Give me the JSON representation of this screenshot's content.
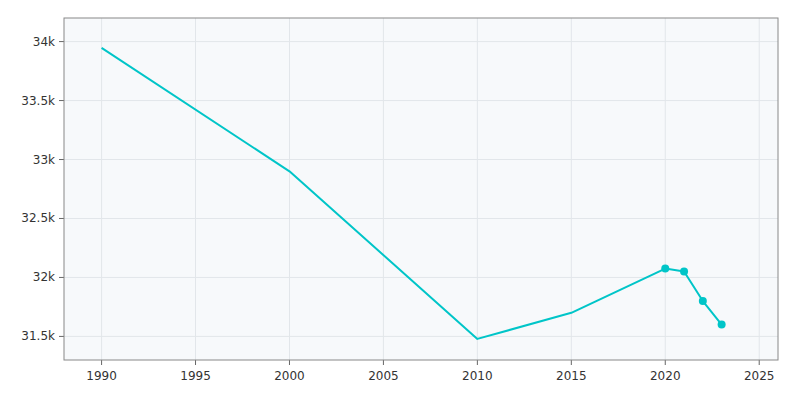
{
  "chart_data": {
    "type": "line",
    "x": [
      1990,
      2000,
      2010,
      2015,
      2020,
      2021,
      2022,
      2023
    ],
    "series": [
      {
        "type": "line",
        "color": "#00C5C8",
        "line_style": "solid",
        "values": [
          33946,
          32900,
          31479,
          31700,
          32075,
          32050,
          31800,
          31600
        ]
      },
      {
        "type": "scatter",
        "color": "#00C5C8",
        "marker": "circle",
        "values": [
          null,
          null,
          null,
          null,
          32075,
          32050,
          31800,
          31600
        ]
      }
    ],
    "xlim": [
      1988,
      2026
    ],
    "xticks": [
      1990,
      1995,
      2000,
      2005,
      2010,
      2015,
      2020,
      2025
    ],
    "ylim": [
      31300,
      34200
    ],
    "yticks": [
      {
        "value": 31500,
        "label": "31.5k"
      },
      {
        "value": 32000,
        "label": "32k"
      },
      {
        "value": 32500,
        "label": "32.5k"
      },
      {
        "value": 33000,
        "label": "33k"
      },
      {
        "value": 33500,
        "label": "33.5k"
      },
      {
        "value": 34000,
        "label": "34k"
      }
    ],
    "grid": true
  }
}
